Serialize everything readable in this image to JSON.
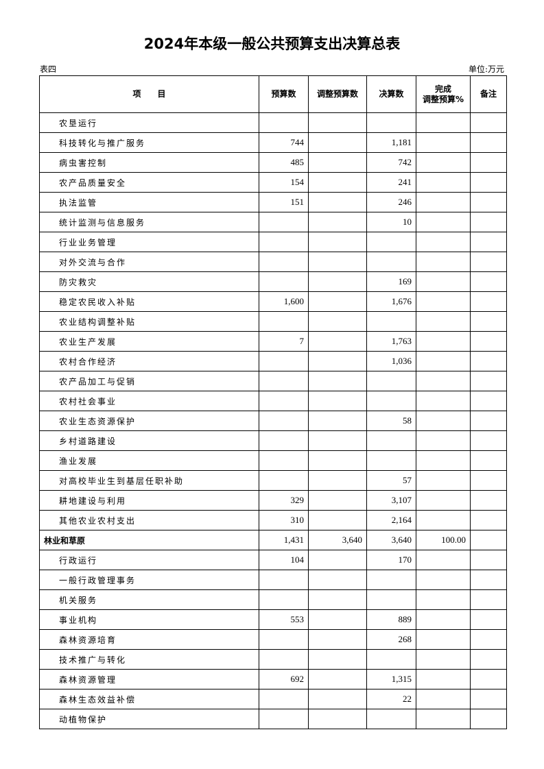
{
  "title": "2024年本级一般公共预算支出决算总表",
  "table_no": "表四",
  "unit": "单位:万元",
  "columns": [
    "项　　目",
    "预算数",
    "调整预算数",
    "决算数",
    "完成\n调整预算%",
    "备注"
  ],
  "rows": [
    {
      "name": "农垦运行",
      "budget": "",
      "adjusted": "",
      "final": "",
      "pct": "",
      "note": ""
    },
    {
      "name": "科技转化与推广服务",
      "budget": "744",
      "adjusted": "",
      "final": "1,181",
      "pct": "",
      "note": ""
    },
    {
      "name": "病虫害控制",
      "budget": "485",
      "adjusted": "",
      "final": "742",
      "pct": "",
      "note": ""
    },
    {
      "name": "农产品质量安全",
      "budget": "154",
      "adjusted": "",
      "final": "241",
      "pct": "",
      "note": ""
    },
    {
      "name": "执法监管",
      "budget": "151",
      "adjusted": "",
      "final": "246",
      "pct": "",
      "note": ""
    },
    {
      "name": "统计监测与信息服务",
      "budget": "",
      "adjusted": "",
      "final": "10",
      "pct": "",
      "note": ""
    },
    {
      "name": "行业业务管理",
      "budget": "",
      "adjusted": "",
      "final": "",
      "pct": "",
      "note": ""
    },
    {
      "name": "对外交流与合作",
      "budget": "",
      "adjusted": "",
      "final": "",
      "pct": "",
      "note": ""
    },
    {
      "name": "防灾救灾",
      "budget": "",
      "adjusted": "",
      "final": "169",
      "pct": "",
      "note": ""
    },
    {
      "name": "稳定农民收入补贴",
      "budget": "1,600",
      "adjusted": "",
      "final": "1,676",
      "pct": "",
      "note": ""
    },
    {
      "name": "农业结构调整补贴",
      "budget": "",
      "adjusted": "",
      "final": "",
      "pct": "",
      "note": ""
    },
    {
      "name": "农业生产发展",
      "budget": "7",
      "adjusted": "",
      "final": "1,763",
      "pct": "",
      "note": ""
    },
    {
      "name": "农村合作经济",
      "budget": "",
      "adjusted": "",
      "final": "1,036",
      "pct": "",
      "note": ""
    },
    {
      "name": "农产品加工与促销",
      "budget": "",
      "adjusted": "",
      "final": "",
      "pct": "",
      "note": ""
    },
    {
      "name": "农村社会事业",
      "budget": "",
      "adjusted": "",
      "final": "",
      "pct": "",
      "note": ""
    },
    {
      "name": "农业生态资源保护",
      "budget": "",
      "adjusted": "",
      "final": "58",
      "pct": "",
      "note": ""
    },
    {
      "name": "乡村道路建设",
      "budget": "",
      "adjusted": "",
      "final": "",
      "pct": "",
      "note": ""
    },
    {
      "name": "渔业发展",
      "budget": "",
      "adjusted": "",
      "final": "",
      "pct": "",
      "note": ""
    },
    {
      "name": "对高校毕业生到基层任职补助",
      "budget": "",
      "adjusted": "",
      "final": "57",
      "pct": "",
      "note": ""
    },
    {
      "name": "耕地建设与利用",
      "budget": "329",
      "adjusted": "",
      "final": "3,107",
      "pct": "",
      "note": ""
    },
    {
      "name": "其他农业农村支出",
      "budget": "310",
      "adjusted": "",
      "final": "2,164",
      "pct": "",
      "note": ""
    },
    {
      "name": "林业和草原",
      "budget": "1,431",
      "adjusted": "3,640",
      "final": "3,640",
      "pct": "100.00",
      "note": "",
      "bold": true
    },
    {
      "name": "行政运行",
      "budget": "104",
      "adjusted": "",
      "final": "170",
      "pct": "",
      "note": ""
    },
    {
      "name": "一般行政管理事务",
      "budget": "",
      "adjusted": "",
      "final": "",
      "pct": "",
      "note": ""
    },
    {
      "name": "机关服务",
      "budget": "",
      "adjusted": "",
      "final": "",
      "pct": "",
      "note": ""
    },
    {
      "name": "事业机构",
      "budget": "553",
      "adjusted": "",
      "final": "889",
      "pct": "",
      "note": ""
    },
    {
      "name": "森林资源培育",
      "budget": "",
      "adjusted": "",
      "final": "268",
      "pct": "",
      "note": ""
    },
    {
      "name": "技术推广与转化",
      "budget": "",
      "adjusted": "",
      "final": "",
      "pct": "",
      "note": ""
    },
    {
      "name": "森林资源管理",
      "budget": "692",
      "adjusted": "",
      "final": "1,315",
      "pct": "",
      "note": ""
    },
    {
      "name": "森林生态效益补偿",
      "budget": "",
      "adjusted": "",
      "final": "22",
      "pct": "",
      "note": ""
    },
    {
      "name": "动植物保护",
      "budget": "",
      "adjusted": "",
      "final": "",
      "pct": "",
      "note": ""
    }
  ]
}
